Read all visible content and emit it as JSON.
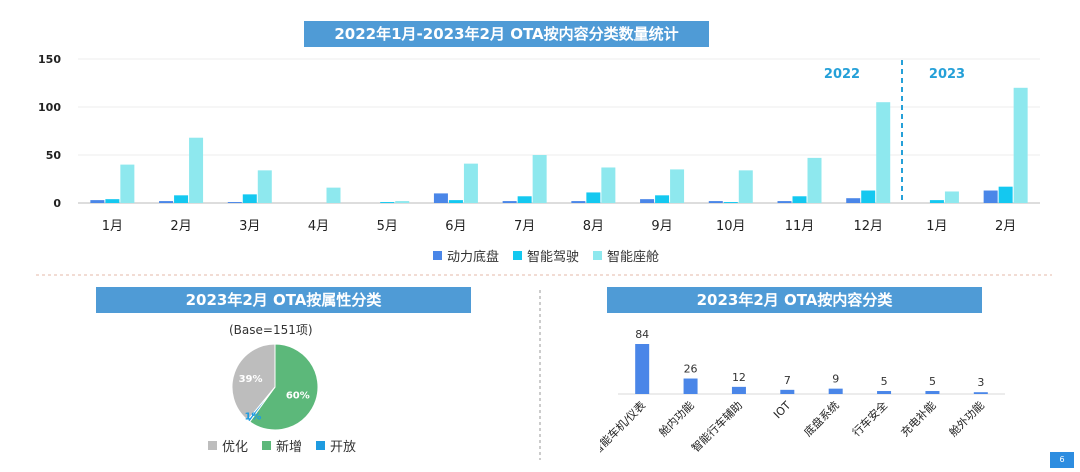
{
  "top": {
    "title": "2022年1月-2023年2月 OTA按内容分类数量统计",
    "year_2022": "2022",
    "year_2023": "2023",
    "legend": [
      "动力底盘",
      "智能驾驶",
      "智能座舱"
    ]
  },
  "pie": {
    "title": "2023年2月 OTA按属性分类",
    "base": "(Base=151项)",
    "legend": [
      "优化",
      "新增",
      "开放"
    ],
    "slice_labels": [
      "39%",
      "60%",
      "1%"
    ]
  },
  "bar2": {
    "title": "2023年2月 OTA按内容分类"
  },
  "page_number": "6",
  "colors": {
    "banner": "#4f9bd6",
    "powertrain": "#4a86e8",
    "driving": "#14c8f0",
    "cockpit": "#8ee8ee",
    "pie_opt": "#bdbdbd",
    "pie_new": "#5cb87a",
    "pie_open": "#1e9be0",
    "divider": "#25a0d8"
  },
  "chart_data": [
    {
      "type": "bar",
      "categories": [
        "1月",
        "2月",
        "3月",
        "4月",
        "5月",
        "6月",
        "7月",
        "8月",
        "9月",
        "10月",
        "11月",
        "12月",
        "1月",
        "2月"
      ],
      "series": [
        {
          "name": "动力底盘",
          "values": [
            3,
            2,
            1,
            0,
            0,
            10,
            2,
            2,
            4,
            2,
            2,
            5,
            0,
            13
          ]
        },
        {
          "name": "智能驾驶",
          "values": [
            4,
            8,
            9,
            0,
            1,
            3,
            7,
            11,
            8,
            1,
            7,
            13,
            3,
            17
          ]
        },
        {
          "name": "智能座舱",
          "values": [
            40,
            68,
            34,
            16,
            2,
            41,
            50,
            37,
            35,
            34,
            47,
            105,
            12,
            120
          ]
        }
      ],
      "ylim": [
        0,
        150
      ],
      "yticks": [
        0,
        50,
        100,
        150
      ],
      "legend_position": "bottom"
    },
    {
      "type": "pie",
      "labels": [
        "优化",
        "新增",
        "开放"
      ],
      "values": [
        39,
        60,
        1
      ],
      "legend_position": "bottom"
    },
    {
      "type": "bar",
      "categories": [
        "智能车机/仪表",
        "舱内功能",
        "智能行车辅助",
        "IOT",
        "底盘系统",
        "行车安全",
        "充电补能",
        "舱外功能"
      ],
      "values": [
        84,
        26,
        12,
        7,
        9,
        5,
        5,
        3
      ]
    }
  ]
}
